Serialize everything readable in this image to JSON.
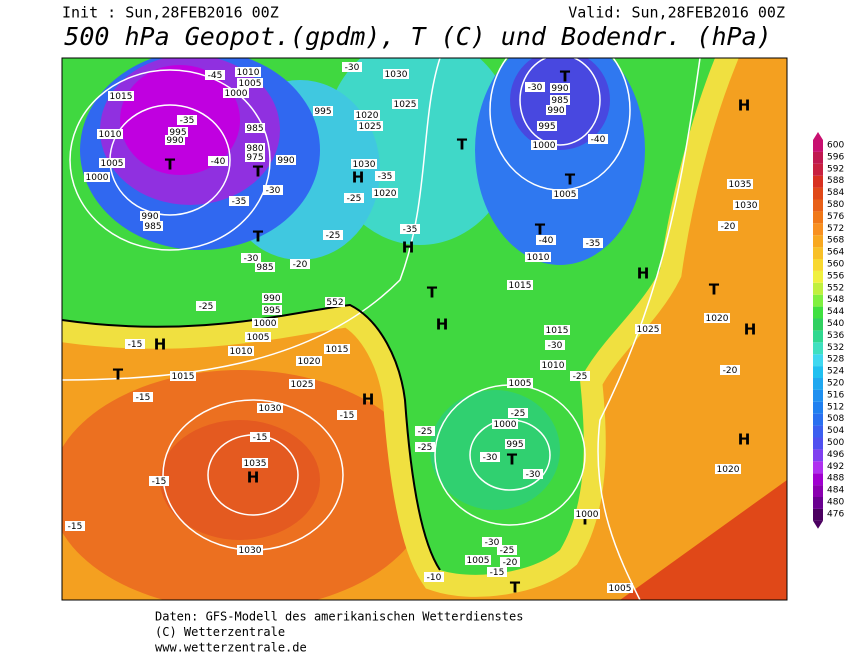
{
  "header": {
    "init": "Init : Sun,28FEB2016 00Z",
    "valid": "Valid: Sun,28FEB2016 00Z",
    "title": "500 hPa Geopot.(gpdm), T (C) und Bodendr. (hPa)"
  },
  "map": {
    "labels": [
      "T",
      "T",
      "T",
      "H",
      "T",
      "T",
      "T",
      "T",
      "H",
      "T",
      "H",
      "H",
      "H",
      "T",
      "H",
      "H",
      "T",
      "H",
      "T",
      "H",
      "H",
      "T",
      "T",
      "1010",
      "1005",
      "1000",
      "1015",
      "1010",
      "1005",
      "1000",
      "995",
      "990",
      "985",
      "980",
      "975",
      "990",
      "995",
      "1030",
      "1025",
      "1020",
      "1025",
      "1030",
      "1020",
      "990",
      "985",
      "990",
      "995",
      "1000",
      "1005",
      "1010",
      "1015",
      "1015",
      "1010",
      "1005",
      "1000",
      "995",
      "990",
      "995",
      "1000",
      "1005",
      "1010",
      "1015",
      "1020",
      "1025",
      "1030",
      "1035",
      "1030",
      "1015",
      "990",
      "985",
      "985",
      "1035",
      "1030",
      "1025",
      "1020",
      "1020",
      "1000",
      "1005",
      "1005",
      "552",
      "-45",
      "-35",
      "-40",
      "-30",
      "-35",
      "-30",
      "-20",
      "-25",
      "-25",
      "-35",
      "-35",
      "-30",
      "-30",
      "-40",
      "-40",
      "-35",
      "-25",
      "-15",
      "-15",
      "-15",
      "-15",
      "-15",
      "-15",
      "-25",
      "-25",
      "-25",
      "-30",
      "-25",
      "-20",
      "-20",
      "-30",
      "-30",
      "-30",
      "-25",
      "-20",
      "-15",
      "-10"
    ]
  },
  "colorbar": {
    "values": [
      476,
      480,
      484,
      488,
      492,
      496,
      500,
      504,
      508,
      512,
      516,
      520,
      524,
      528,
      532,
      536,
      540,
      544,
      548,
      552,
      556,
      560,
      564,
      568,
      572,
      576,
      580,
      584,
      588,
      592,
      596,
      600
    ],
    "colors": [
      "#4b0060",
      "#6a0090",
      "#8a00b0",
      "#a000d0",
      "#b030f0",
      "#8040f0",
      "#5050f0",
      "#3c5ff0",
      "#2a70f0",
      "#2080f0",
      "#2090f0",
      "#20a8f0",
      "#20c0f0",
      "#40d8f0",
      "#40e0c0",
      "#30d890",
      "#30d060",
      "#40e040",
      "#80f040",
      "#c0f040",
      "#f0f040",
      "#f8d830",
      "#f8c028",
      "#f8a820",
      "#f89020",
      "#f07818",
      "#e86018",
      "#e04818",
      "#d83020",
      "#c82040",
      "#c01850",
      "#c81070"
    ]
  },
  "footer": {
    "lines": [
      "Daten: GFS-Modell des amerikanischen Wetterdienstes",
      "(C) Wetterzentrale",
      "www.wetterzentrale.de"
    ]
  }
}
